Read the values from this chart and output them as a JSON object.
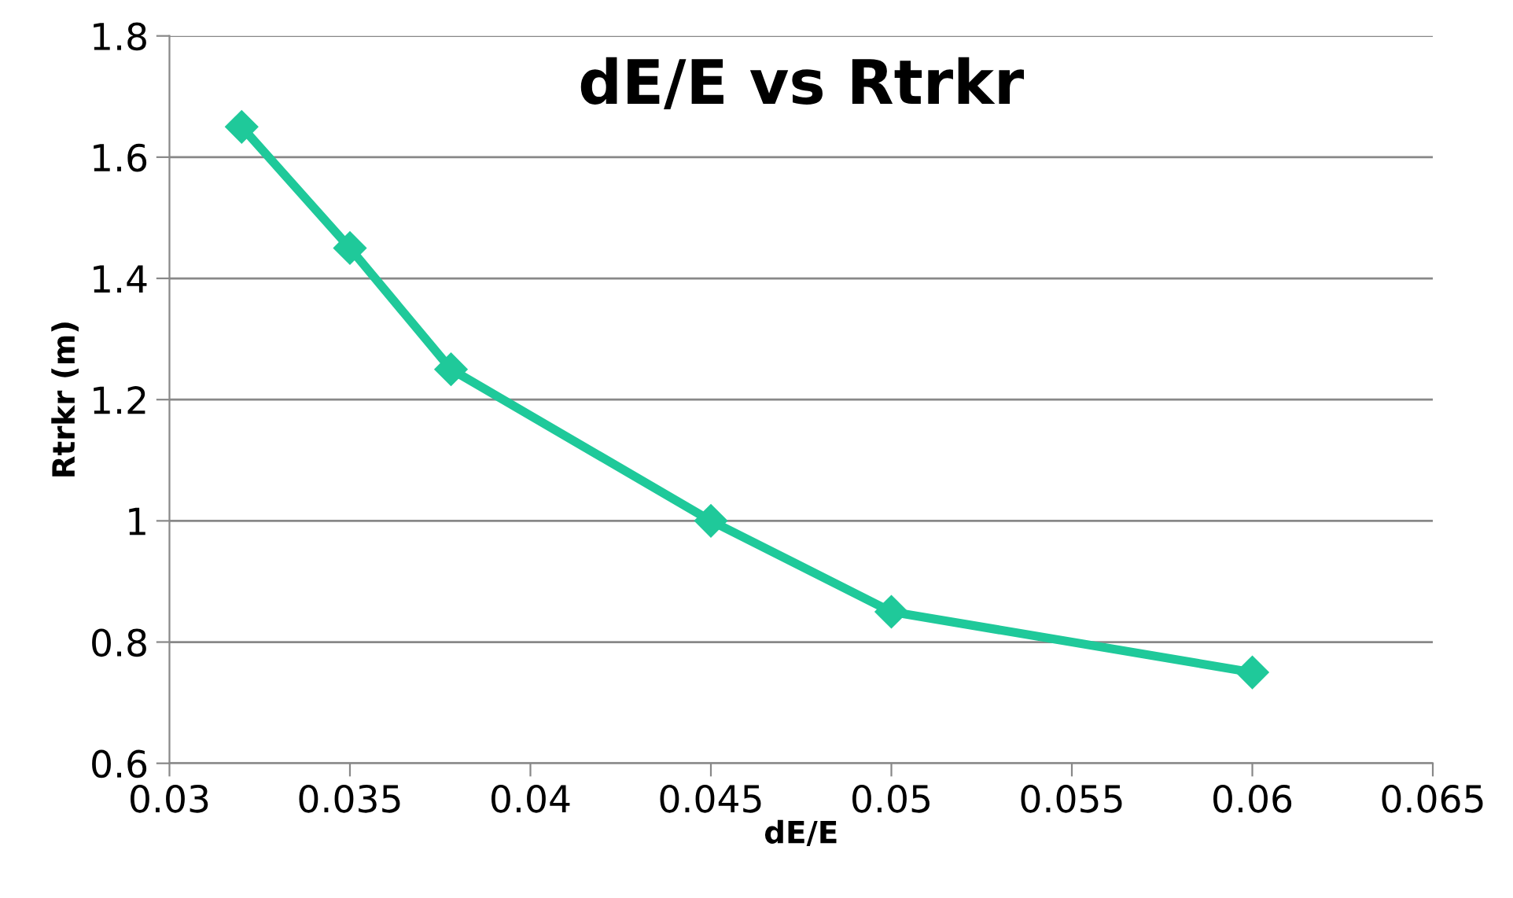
{
  "chart_data": {
    "type": "line",
    "title": "dE/E vs Rtrkr",
    "xlabel": "dE/E",
    "ylabel": "Rtrkr (m)",
    "x": [
      0.032,
      0.035,
      0.0378,
      0.045,
      0.05,
      0.06
    ],
    "series": [
      {
        "color": "#1fc99a",
        "values": [
          1.65,
          1.45,
          1.25,
          1.0,
          0.85,
          0.75
        ]
      }
    ],
    "xlim": [
      0.03,
      0.065
    ],
    "xticks": [
      0.03,
      0.035,
      0.04,
      0.045,
      0.05,
      0.055,
      0.06,
      0.065
    ],
    "ylim": [
      0.6,
      1.8
    ],
    "yticks": [
      0.6,
      0.8,
      1,
      1.2,
      1.4,
      1.6,
      1.8
    ],
    "grid": "y",
    "marker": "diamond",
    "line_style": "solid"
  }
}
